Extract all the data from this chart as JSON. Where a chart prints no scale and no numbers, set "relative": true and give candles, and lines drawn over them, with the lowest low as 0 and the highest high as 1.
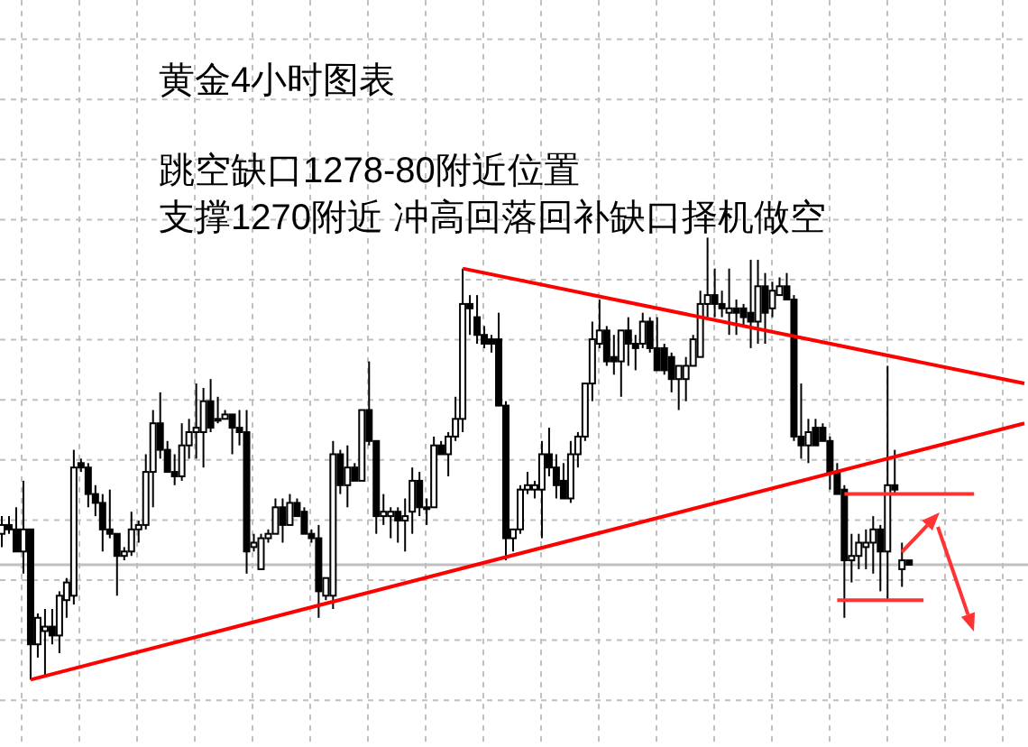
{
  "chart_data": {
    "type": "candlestick",
    "title": "黄金4小时图表",
    "annotations": [
      "跳空缺口1278-80附近位置",
      "支撑1270附近 冲高回落回补缺口择机做空"
    ],
    "relative": true,
    "grid": true,
    "categories": [
      null,
      null,
      null,
      null,
      null,
      null,
      null,
      null,
      null,
      null,
      null,
      null,
      null,
      null,
      null,
      null,
      null,
      null,
      null,
      null,
      null,
      null,
      null,
      null,
      null,
      null,
      null,
      null,
      null,
      null,
      null,
      null,
      null,
      null,
      null,
      null,
      null,
      null,
      null,
      null,
      null,
      null,
      null,
      null,
      null,
      null,
      null,
      null,
      null,
      null,
      null,
      null,
      null,
      null,
      null,
      null,
      null,
      null,
      null,
      null,
      null,
      null,
      null,
      null,
      null,
      null,
      null,
      null,
      null,
      null,
      null,
      null,
      null,
      null,
      null,
      null,
      null,
      null,
      null,
      null,
      null,
      null,
      null,
      null,
      null,
      null,
      null,
      null,
      null,
      null,
      null,
      null,
      null,
      null,
      null,
      null,
      null,
      null,
      null,
      null,
      null,
      null,
      null,
      null,
      null,
      null,
      null,
      null,
      null,
      null,
      null,
      null,
      null,
      null,
      null,
      null,
      null,
      null,
      null,
      null,
      null,
      null,
      null,
      null,
      null,
      null,
      null,
      null,
      null,
      null,
      null,
      null,
      null,
      null,
      null,
      null,
      null,
      null,
      null,
      null,
      null,
      null,
      null
    ],
    "ohlc": [
      [
        0.33,
        0.37,
        0.3,
        0.35
      ],
      [
        0.35,
        0.37,
        0.33,
        0.34
      ],
      [
        0.34,
        0.39,
        0.29,
        0.29
      ],
      [
        0.29,
        0.45,
        0.24,
        0.34
      ],
      [
        0.34,
        0.34,
        0.0,
        0.08
      ],
      [
        0.08,
        0.15,
        0.05,
        0.14
      ],
      [
        0.11,
        0.16,
        0.01,
        0.12
      ],
      [
        0.12,
        0.16,
        0.08,
        0.1
      ],
      [
        0.1,
        0.2,
        0.06,
        0.19
      ],
      [
        0.18,
        0.23,
        0.14,
        0.22
      ],
      [
        0.19,
        0.52,
        0.17,
        0.48
      ],
      [
        0.49,
        0.5,
        0.47,
        0.48
      ],
      [
        0.48,
        0.49,
        0.39,
        0.42
      ],
      [
        0.42,
        0.44,
        0.37,
        0.4
      ],
      [
        0.4,
        0.42,
        0.29,
        0.34
      ],
      [
        0.34,
        0.43,
        0.32,
        0.33
      ],
      [
        0.33,
        0.33,
        0.19,
        0.28
      ],
      [
        0.28,
        0.3,
        0.27,
        0.29
      ],
      [
        0.29,
        0.38,
        0.28,
        0.34
      ],
      [
        0.34,
        0.36,
        0.31,
        0.35
      ],
      [
        0.35,
        0.51,
        0.34,
        0.47
      ],
      [
        0.47,
        0.61,
        0.39,
        0.58
      ],
      [
        0.58,
        0.65,
        0.5,
        0.52
      ],
      [
        0.52,
        0.54,
        0.47,
        0.47
      ],
      [
        0.47,
        0.51,
        0.44,
        0.46
      ],
      [
        0.46,
        0.58,
        0.45,
        0.53
      ],
      [
        0.53,
        0.59,
        0.5,
        0.56
      ],
      [
        0.56,
        0.67,
        0.5,
        0.57
      ],
      [
        0.56,
        0.66,
        0.48,
        0.63
      ],
      [
        0.63,
        0.68,
        0.56,
        0.57
      ],
      [
        0.59,
        0.64,
        0.58,
        0.59
      ],
      [
        0.59,
        0.61,
        0.59,
        0.6
      ],
      [
        0.6,
        0.6,
        0.51,
        0.57
      ],
      [
        0.57,
        0.61,
        0.53,
        0.56
      ],
      [
        0.56,
        0.61,
        0.24,
        0.29
      ],
      [
        0.3,
        0.33,
        0.29,
        0.31
      ],
      [
        0.25,
        0.33,
        0.25,
        0.32
      ],
      [
        0.32,
        0.34,
        0.31,
        0.33
      ],
      [
        0.33,
        0.41,
        0.33,
        0.39
      ],
      [
        0.39,
        0.41,
        0.31,
        0.35
      ],
      [
        0.35,
        0.42,
        0.35,
        0.4
      ],
      [
        0.4,
        0.41,
        0.37,
        0.37
      ],
      [
        0.38,
        0.39,
        0.33,
        0.33
      ],
      [
        0.33,
        0.34,
        0.31,
        0.32
      ],
      [
        0.32,
        0.35,
        0.14,
        0.2
      ],
      [
        0.19,
        0.23,
        0.18,
        0.23
      ],
      [
        0.19,
        0.54,
        0.16,
        0.51
      ],
      [
        0.51,
        0.52,
        0.42,
        0.44
      ],
      [
        0.44,
        0.53,
        0.39,
        0.48
      ],
      [
        0.48,
        0.49,
        0.45,
        0.45
      ],
      [
        0.45,
        0.61,
        0.45,
        0.61
      ],
      [
        0.61,
        0.72,
        0.53,
        0.54
      ],
      [
        0.54,
        0.54,
        0.33,
        0.37
      ],
      [
        0.37,
        0.42,
        0.35,
        0.38
      ],
      [
        0.37,
        0.39,
        0.32,
        0.38
      ],
      [
        0.38,
        0.39,
        0.31,
        0.36
      ],
      [
        0.36,
        0.41,
        0.29,
        0.37
      ],
      [
        0.38,
        0.48,
        0.33,
        0.45
      ],
      [
        0.45,
        0.47,
        0.37,
        0.39
      ],
      [
        0.39,
        0.41,
        0.35,
        0.39
      ],
      [
        0.39,
        0.55,
        0.39,
        0.53
      ],
      [
        0.53,
        0.54,
        0.51,
        0.51
      ],
      [
        0.51,
        0.56,
        0.46,
        0.55
      ],
      [
        0.55,
        0.64,
        0.54,
        0.59
      ],
      [
        0.59,
        0.93,
        0.56,
        0.85
      ],
      [
        0.85,
        0.87,
        0.78,
        0.84
      ],
      [
        0.82,
        0.87,
        0.76,
        0.78
      ],
      [
        0.78,
        0.8,
        0.75,
        0.76
      ],
      [
        0.77,
        0.78,
        0.74,
        0.76
      ],
      [
        0.77,
        0.83,
        0.62,
        0.62
      ],
      [
        0.62,
        0.63,
        0.27,
        0.32
      ],
      [
        0.32,
        0.34,
        0.29,
        0.34
      ],
      [
        0.34,
        0.44,
        0.33,
        0.43
      ],
      [
        0.43,
        0.47,
        0.42,
        0.44
      ],
      [
        0.43,
        0.45,
        0.41,
        0.44
      ],
      [
        0.43,
        0.54,
        0.32,
        0.51
      ],
      [
        0.51,
        0.57,
        0.46,
        0.48
      ],
      [
        0.48,
        0.51,
        0.41,
        0.44
      ],
      [
        0.45,
        0.49,
        0.41,
        0.41
      ],
      [
        0.41,
        0.54,
        0.4,
        0.51
      ],
      [
        0.51,
        0.56,
        0.48,
        0.55
      ],
      [
        0.55,
        0.67,
        0.54,
        0.67
      ],
      [
        0.67,
        0.81,
        0.63,
        0.77
      ],
      [
        0.76,
        0.86,
        0.75,
        0.79
      ],
      [
        0.79,
        0.8,
        0.71,
        0.72
      ],
      [
        0.73,
        0.78,
        0.69,
        0.72
      ],
      [
        0.72,
        0.79,
        0.64,
        0.79
      ],
      [
        0.79,
        0.82,
        0.71,
        0.76
      ],
      [
        0.76,
        0.78,
        0.7,
        0.75
      ],
      [
        0.76,
        0.83,
        0.75,
        0.81
      ],
      [
        0.81,
        0.82,
        0.74,
        0.75
      ],
      [
        0.75,
        0.82,
        0.7,
        0.7
      ],
      [
        0.75,
        0.76,
        0.69,
        0.7
      ],
      [
        0.73,
        0.74,
        0.65,
        0.68
      ],
      [
        0.68,
        0.71,
        0.61,
        0.71
      ],
      [
        0.68,
        0.73,
        0.63,
        0.71
      ],
      [
        0.71,
        0.78,
        0.71,
        0.77
      ],
      [
        0.73,
        0.88,
        0.73,
        0.85
      ],
      [
        0.85,
        1.0,
        0.82,
        0.87
      ],
      [
        0.87,
        0.93,
        0.82,
        0.85
      ],
      [
        0.85,
        0.88,
        0.82,
        0.84
      ],
      [
        0.83,
        0.93,
        0.78,
        0.84
      ],
      [
        0.84,
        0.86,
        0.78,
        0.83
      ],
      [
        0.84,
        0.85,
        0.8,
        0.82
      ],
      [
        0.83,
        0.95,
        0.75,
        0.81
      ],
      [
        0.81,
        0.95,
        0.76,
        0.89
      ],
      [
        0.89,
        0.92,
        0.76,
        0.83
      ],
      [
        0.84,
        0.9,
        0.82,
        0.88
      ],
      [
        0.87,
        0.91,
        0.87,
        0.89
      ],
      [
        0.89,
        0.92,
        0.86,
        0.86
      ],
      [
        0.86,
        0.87,
        0.54,
        0.55
      ],
      [
        0.55,
        0.67,
        0.5,
        0.53
      ],
      [
        0.53,
        0.59,
        0.49,
        0.56
      ],
      [
        0.57,
        0.59,
        0.53,
        0.53
      ],
      [
        0.57,
        0.58,
        0.54,
        0.54
      ],
      [
        0.54,
        0.55,
        0.43,
        0.47
      ],
      [
        0.47,
        0.49,
        0.42,
        0.42
      ],
      [
        0.43,
        0.44,
        0.14,
        0.27
      ],
      [
        0.27,
        0.33,
        0.22,
        0.28
      ],
      [
        0.28,
        0.33,
        0.25,
        0.31
      ],
      [
        0.3,
        0.34,
        0.25,
        0.31
      ],
      [
        0.31,
        0.37,
        0.24,
        0.34
      ],
      [
        0.34,
        0.35,
        0.2,
        0.29
      ],
      [
        0.29,
        0.71,
        0.18,
        0.44
      ],
      [
        0.44,
        0.52,
        0.42,
        0.43
      ],
      [
        0.25,
        0.31,
        0.21,
        0.27
      ],
      [
        0.27,
        0.27,
        0.26,
        0.26
      ],
      null,
      null,
      null,
      null,
      null,
      null,
      null,
      null,
      null,
      null,
      null,
      null,
      null,
      null,
      null,
      null
    ],
    "series": [
      {
        "type": "line",
        "color": "#ff0000",
        "values": [
          null,
          null,
          null,
          null,
          0.0,
          null,
          null,
          null,
          null,
          null,
          null,
          null,
          null,
          null,
          null,
          null,
          null,
          null,
          null,
          null,
          null,
          null,
          null,
          null,
          null,
          null,
          null,
          null,
          null,
          null,
          null,
          null,
          null,
          null,
          null,
          null,
          null,
          null,
          null,
          null,
          null,
          null,
          null,
          null,
          null,
          null,
          null,
          null,
          null,
          null,
          null,
          null,
          null,
          null,
          null,
          null,
          null,
          null,
          null,
          null,
          null,
          null,
          null,
          null,
          null,
          null,
          null,
          null,
          null,
          null,
          null,
          null,
          null,
          null,
          null,
          null,
          null,
          null,
          null,
          null,
          null,
          null,
          null,
          null,
          null,
          null,
          null,
          null,
          null,
          null,
          null,
          null,
          null,
          null,
          null,
          null,
          null,
          null,
          null,
          null,
          null,
          null,
          null,
          null,
          null,
          null,
          null,
          null,
          null,
          null,
          null,
          null,
          null,
          null,
          null,
          null,
          null,
          null,
          null,
          null,
          null,
          null,
          null,
          null,
          null,
          null,
          null,
          null,
          null,
          null,
          null,
          null,
          null,
          null,
          null,
          null,
          null,
          null,
          null,
          null,
          null,
          null,
          0.58
        ]
      },
      {
        "type": "line",
        "color": "#ff0000",
        "values": [
          null,
          null,
          null,
          null,
          null,
          null,
          null,
          null,
          null,
          null,
          null,
          null,
          null,
          null,
          null,
          null,
          null,
          null,
          null,
          null,
          null,
          null,
          null,
          null,
          null,
          null,
          null,
          null,
          null,
          null,
          null,
          null,
          null,
          null,
          null,
          null,
          null,
          null,
          null,
          null,
          null,
          null,
          null,
          null,
          null,
          null,
          null,
          null,
          null,
          null,
          null,
          null,
          null,
          null,
          null,
          null,
          null,
          null,
          null,
          null,
          null,
          null,
          null,
          null,
          0.93,
          null,
          null,
          null,
          null,
          null,
          null,
          null,
          null,
          null,
          null,
          null,
          null,
          null,
          null,
          null,
          null,
          null,
          null,
          null,
          null,
          null,
          null,
          null,
          null,
          null,
          null,
          null,
          null,
          null,
          null,
          null,
          null,
          null,
          null,
          null,
          null,
          null,
          null,
          null,
          null,
          null,
          null,
          null,
          null,
          null,
          null,
          null,
          null,
          null,
          null,
          null,
          null,
          null,
          null,
          null,
          null,
          null,
          null,
          null,
          null,
          null,
          null,
          null,
          null,
          null,
          null,
          null,
          null,
          null,
          null,
          null,
          null,
          null,
          null,
          null,
          null,
          null,
          0.67
        ]
      },
      {
        "type": "line",
        "color": "#ff3333",
        "values": [
          null,
          null,
          null,
          null,
          null,
          null,
          null,
          null,
          null,
          null,
          null,
          null,
          null,
          null,
          null,
          null,
          null,
          null,
          null,
          null,
          null,
          null,
          null,
          null,
          null,
          null,
          null,
          null,
          null,
          null,
          null,
          null,
          null,
          null,
          null,
          null,
          null,
          null,
          null,
          null,
          null,
          null,
          null,
          null,
          null,
          null,
          null,
          null,
          null,
          null,
          null,
          null,
          null,
          null,
          null,
          null,
          null,
          null,
          null,
          null,
          null,
          null,
          null,
          null,
          null,
          null,
          null,
          null,
          null,
          null,
          null,
          null,
          null,
          null,
          null,
          null,
          null,
          null,
          null,
          null,
          null,
          null,
          null,
          null,
          null,
          null,
          null,
          null,
          null,
          null,
          null,
          null,
          null,
          null,
          null,
          null,
          null,
          null,
          null,
          null,
          null,
          null,
          null,
          null,
          null,
          null,
          null,
          null,
          null,
          null,
          null,
          null,
          null,
          null,
          null,
          null,
          null,
          0.42,
          null,
          null,
          null,
          null,
          null,
          null,
          null,
          null,
          null,
          null,
          null,
          null,
          null,
          null,
          null,
          null,
          null,
          0.42,
          null,
          null,
          null,
          null,
          null,
          null,
          null
        ]
      },
      {
        "type": "line",
        "color": "#ff3333",
        "values": [
          null,
          null,
          null,
          null,
          null,
          null,
          null,
          null,
          null,
          null,
          null,
          null,
          null,
          null,
          null,
          null,
          null,
          null,
          null,
          null,
          null,
          null,
          null,
          null,
          null,
          null,
          null,
          null,
          null,
          null,
          null,
          null,
          null,
          null,
          null,
          null,
          null,
          null,
          null,
          null,
          null,
          null,
          null,
          null,
          null,
          null,
          null,
          null,
          null,
          null,
          null,
          null,
          null,
          null,
          null,
          null,
          null,
          null,
          null,
          null,
          null,
          null,
          null,
          null,
          null,
          null,
          null,
          null,
          null,
          null,
          null,
          null,
          null,
          null,
          null,
          null,
          null,
          null,
          null,
          null,
          null,
          null,
          null,
          null,
          null,
          null,
          null,
          null,
          null,
          null,
          null,
          null,
          null,
          null,
          null,
          null,
          null,
          null,
          null,
          null,
          null,
          null,
          null,
          null,
          null,
          null,
          null,
          null,
          null,
          null,
          null,
          null,
          null,
          null,
          null,
          null,
          0.18,
          null,
          null,
          null,
          null,
          null,
          null,
          null,
          null,
          null,
          null,
          null,
          0.18,
          null,
          null,
          null,
          null,
          null,
          null,
          null,
          null,
          null,
          null,
          null,
          null,
          null,
          null
        ]
      }
    ],
    "ref_lines": [
      {
        "axis": "y",
        "value": 0.26,
        "color": "#c0c0c0"
      }
    ]
  }
}
